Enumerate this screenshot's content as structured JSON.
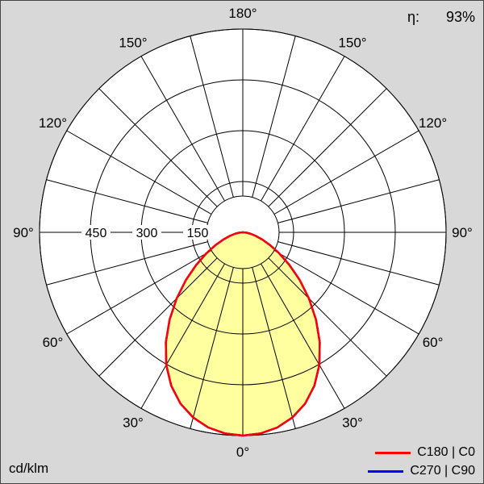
{
  "meta": {
    "efficiency_label": "η:",
    "efficiency_value": "93%",
    "unit_label": "cd/klm"
  },
  "style": {
    "page_bg": "#d8d8d8",
    "chart_bg": "#ffffff",
    "grid_color": "#000000",
    "text_color": "#000000"
  },
  "chart_data": {
    "type": "line",
    "subtype": "polar-luminous-intensity",
    "unit": "cd/klm",
    "max_value": 600,
    "angle_step_deg": 15,
    "ring_values": [
      150,
      300,
      450,
      600
    ],
    "ring_ticks": [
      {
        "value": 150,
        "label": "150"
      },
      {
        "value": 300,
        "label": "300"
      },
      {
        "value": 450,
        "label": "450"
      }
    ],
    "angle_labels": [
      {
        "deg": 0,
        "label": "0°"
      },
      {
        "deg": 30,
        "label": "30°"
      },
      {
        "deg": 60,
        "label": "60°"
      },
      {
        "deg": 90,
        "label": "90°"
      },
      {
        "deg": 120,
        "label": "120°"
      },
      {
        "deg": 150,
        "label": "150°"
      },
      {
        "deg": 180,
        "label": "180°"
      }
    ],
    "gamma_deg": [
      0,
      5,
      10,
      15,
      20,
      25,
      30,
      35,
      40,
      45,
      50,
      55,
      60,
      65,
      70,
      75,
      80,
      85,
      90
    ],
    "series": [
      {
        "name": "C180 | C0",
        "color": "#ff0000",
        "fill": "#ffffa0",
        "values": [
          600,
          596,
          585,
          566,
          538,
          500,
          452,
          396,
          336,
          276,
          219,
          168,
          124,
          88,
          60,
          38,
          22,
          10,
          0
        ]
      },
      {
        "name": "C270 | C90",
        "color": "#0000ff",
        "values": [
          600,
          596,
          585,
          566,
          538,
          500,
          452,
          396,
          336,
          276,
          219,
          168,
          124,
          88,
          60,
          38,
          22,
          10,
          0
        ]
      }
    ]
  }
}
